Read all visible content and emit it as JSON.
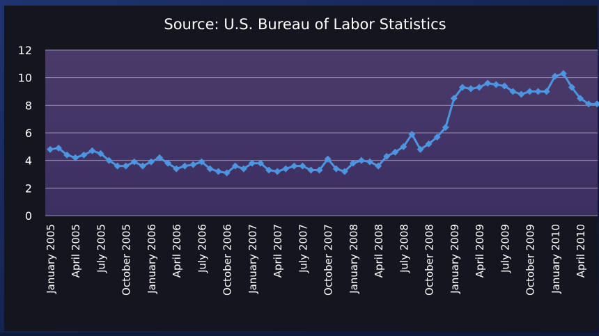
{
  "chart_data": {
    "type": "line",
    "title": "Source:  U.S. Bureau of  Labor Statistics",
    "categories": [
      "January 2005",
      null,
      null,
      "April 2005",
      null,
      null,
      "July 2005",
      null,
      null,
      "October 2005",
      null,
      null,
      "January 2006",
      null,
      null,
      "April 2006",
      null,
      null,
      "July 2006",
      null,
      null,
      "October 2006",
      null,
      null,
      "January 2007",
      null,
      null,
      "April 2007",
      null,
      null,
      "July 2007",
      null,
      null,
      "October 2007",
      null,
      null,
      "January 2008",
      null,
      null,
      "April 2008",
      null,
      null,
      "July 2008",
      null,
      null,
      "October 2008",
      null,
      null,
      "January 2009",
      null,
      null,
      "April 2009",
      null,
      null,
      "July 2009",
      null,
      null,
      "October 2009",
      null,
      null,
      "January 2010",
      null,
      null,
      "April 2010",
      null,
      null
    ],
    "series": [
      {
        "color": "#4d95e0",
        "values": [
          4.8,
          4.9,
          4.4,
          4.2,
          4.4,
          4.7,
          4.5,
          4.0,
          3.6,
          3.6,
          3.9,
          3.6,
          3.9,
          4.2,
          3.8,
          3.4,
          3.6,
          3.7,
          3.9,
          3.4,
          3.2,
          3.1,
          3.6,
          3.4,
          3.8,
          3.8,
          3.3,
          3.2,
          3.4,
          3.6,
          3.6,
          3.3,
          3.3,
          4.1,
          3.4,
          3.2,
          3.8,
          4.0,
          3.9,
          3.6,
          4.3,
          4.6,
          5.0,
          5.9,
          4.8,
          5.2,
          5.7,
          6.4,
          8.5,
          9.3,
          9.2,
          9.3,
          9.6,
          9.5,
          9.4,
          9.0,
          8.8,
          9.0,
          9.0,
          9.0,
          10.1,
          10.3,
          9.3,
          8.5,
          8.1,
          8.1
        ]
      }
    ],
    "ylim": [
      0,
      12
    ],
    "yticks": [
      0,
      2,
      4,
      6,
      8,
      10,
      12
    ],
    "grid": true
  }
}
